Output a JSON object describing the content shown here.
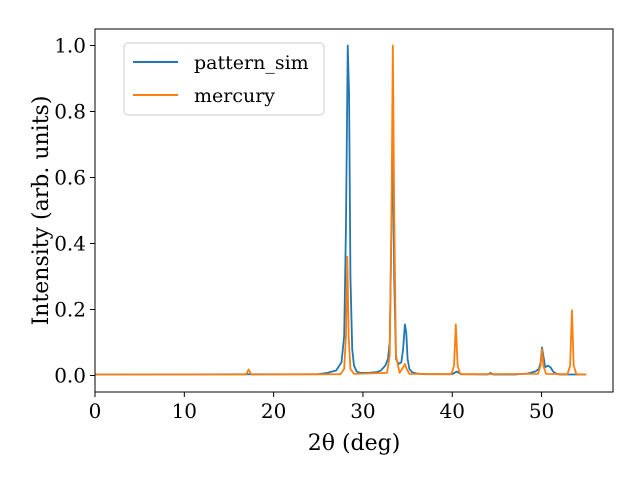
{
  "chart_data": {
    "type": "line",
    "xlabel": "2θ (deg)",
    "ylabel": "Intensity (arb. units)",
    "xlim": [
      0,
      58
    ],
    "ylim": [
      -0.05,
      1.05
    ],
    "xticks": [
      0,
      10,
      20,
      30,
      40,
      50
    ],
    "yticks": [
      0.0,
      0.2,
      0.4,
      0.6,
      0.8,
      1.0
    ],
    "xtick_labels": [
      "0",
      "10",
      "20",
      "30",
      "40",
      "50"
    ],
    "ytick_labels": [
      "0.0",
      "0.2",
      "0.4",
      "0.6",
      "0.8",
      "1.0"
    ],
    "grid": false,
    "legend_position": "top-left",
    "series": [
      {
        "name": "pattern_sim",
        "color": "#1f77b4",
        "x": [
          0,
          25.0,
          26.0,
          27.0,
          27.6,
          27.9,
          28.1,
          28.3,
          28.45,
          28.6,
          28.8,
          29.0,
          29.3,
          29.7,
          30.5,
          31.5,
          32.0,
          32.5,
          32.8,
          33.0,
          33.2,
          33.35,
          33.5,
          33.7,
          34.0,
          34.3,
          34.5,
          34.7,
          34.85,
          35.0,
          35.2,
          35.5,
          36.0,
          37,
          40,
          40.5,
          41,
          44.0,
          44.3,
          44.6,
          47,
          48.5,
          49.3,
          49.7,
          49.9,
          50.05,
          50.2,
          50.4,
          50.7,
          51.0,
          51.3,
          51.6,
          52.0,
          53,
          55.0
        ],
        "y": [
          0.003,
          0.004,
          0.008,
          0.015,
          0.04,
          0.12,
          0.45,
          1.0,
          0.85,
          0.3,
          0.08,
          0.03,
          0.012,
          0.008,
          0.008,
          0.01,
          0.015,
          0.03,
          0.05,
          0.1,
          0.45,
          0.75,
          0.3,
          0.05,
          0.035,
          0.04,
          0.08,
          0.155,
          0.13,
          0.05,
          0.02,
          0.01,
          0.006,
          0.004,
          0.004,
          0.012,
          0.004,
          0.003,
          0.008,
          0.003,
          0.003,
          0.006,
          0.012,
          0.02,
          0.04,
          0.085,
          0.06,
          0.025,
          0.03,
          0.025,
          0.012,
          0.006,
          0.003,
          0.003,
          0.003
        ]
      },
      {
        "name": "mercury",
        "color": "#ff7f0e",
        "x": [
          0,
          16.9,
          17.2,
          17.5,
          27.5,
          27.9,
          28.1,
          28.25,
          28.4,
          28.6,
          29.0,
          32.7,
          33.0,
          33.2,
          33.35,
          33.5,
          33.7,
          34.1,
          34.4,
          34.7,
          34.9,
          35.2,
          39.9,
          40.2,
          40.4,
          40.6,
          40.9,
          49.6,
          49.9,
          50.05,
          50.2,
          50.5,
          52.9,
          53.2,
          53.4,
          53.6,
          53.9,
          55.0
        ],
        "y": [
          0.003,
          0.003,
          0.018,
          0.003,
          0.004,
          0.02,
          0.12,
          0.36,
          0.12,
          0.02,
          0.005,
          0.008,
          0.06,
          0.5,
          1.0,
          0.5,
          0.06,
          0.008,
          0.02,
          0.035,
          0.02,
          0.005,
          0.004,
          0.03,
          0.155,
          0.03,
          0.004,
          0.005,
          0.03,
          0.08,
          0.03,
          0.005,
          0.004,
          0.03,
          0.198,
          0.03,
          0.004,
          0.003
        ]
      }
    ]
  }
}
